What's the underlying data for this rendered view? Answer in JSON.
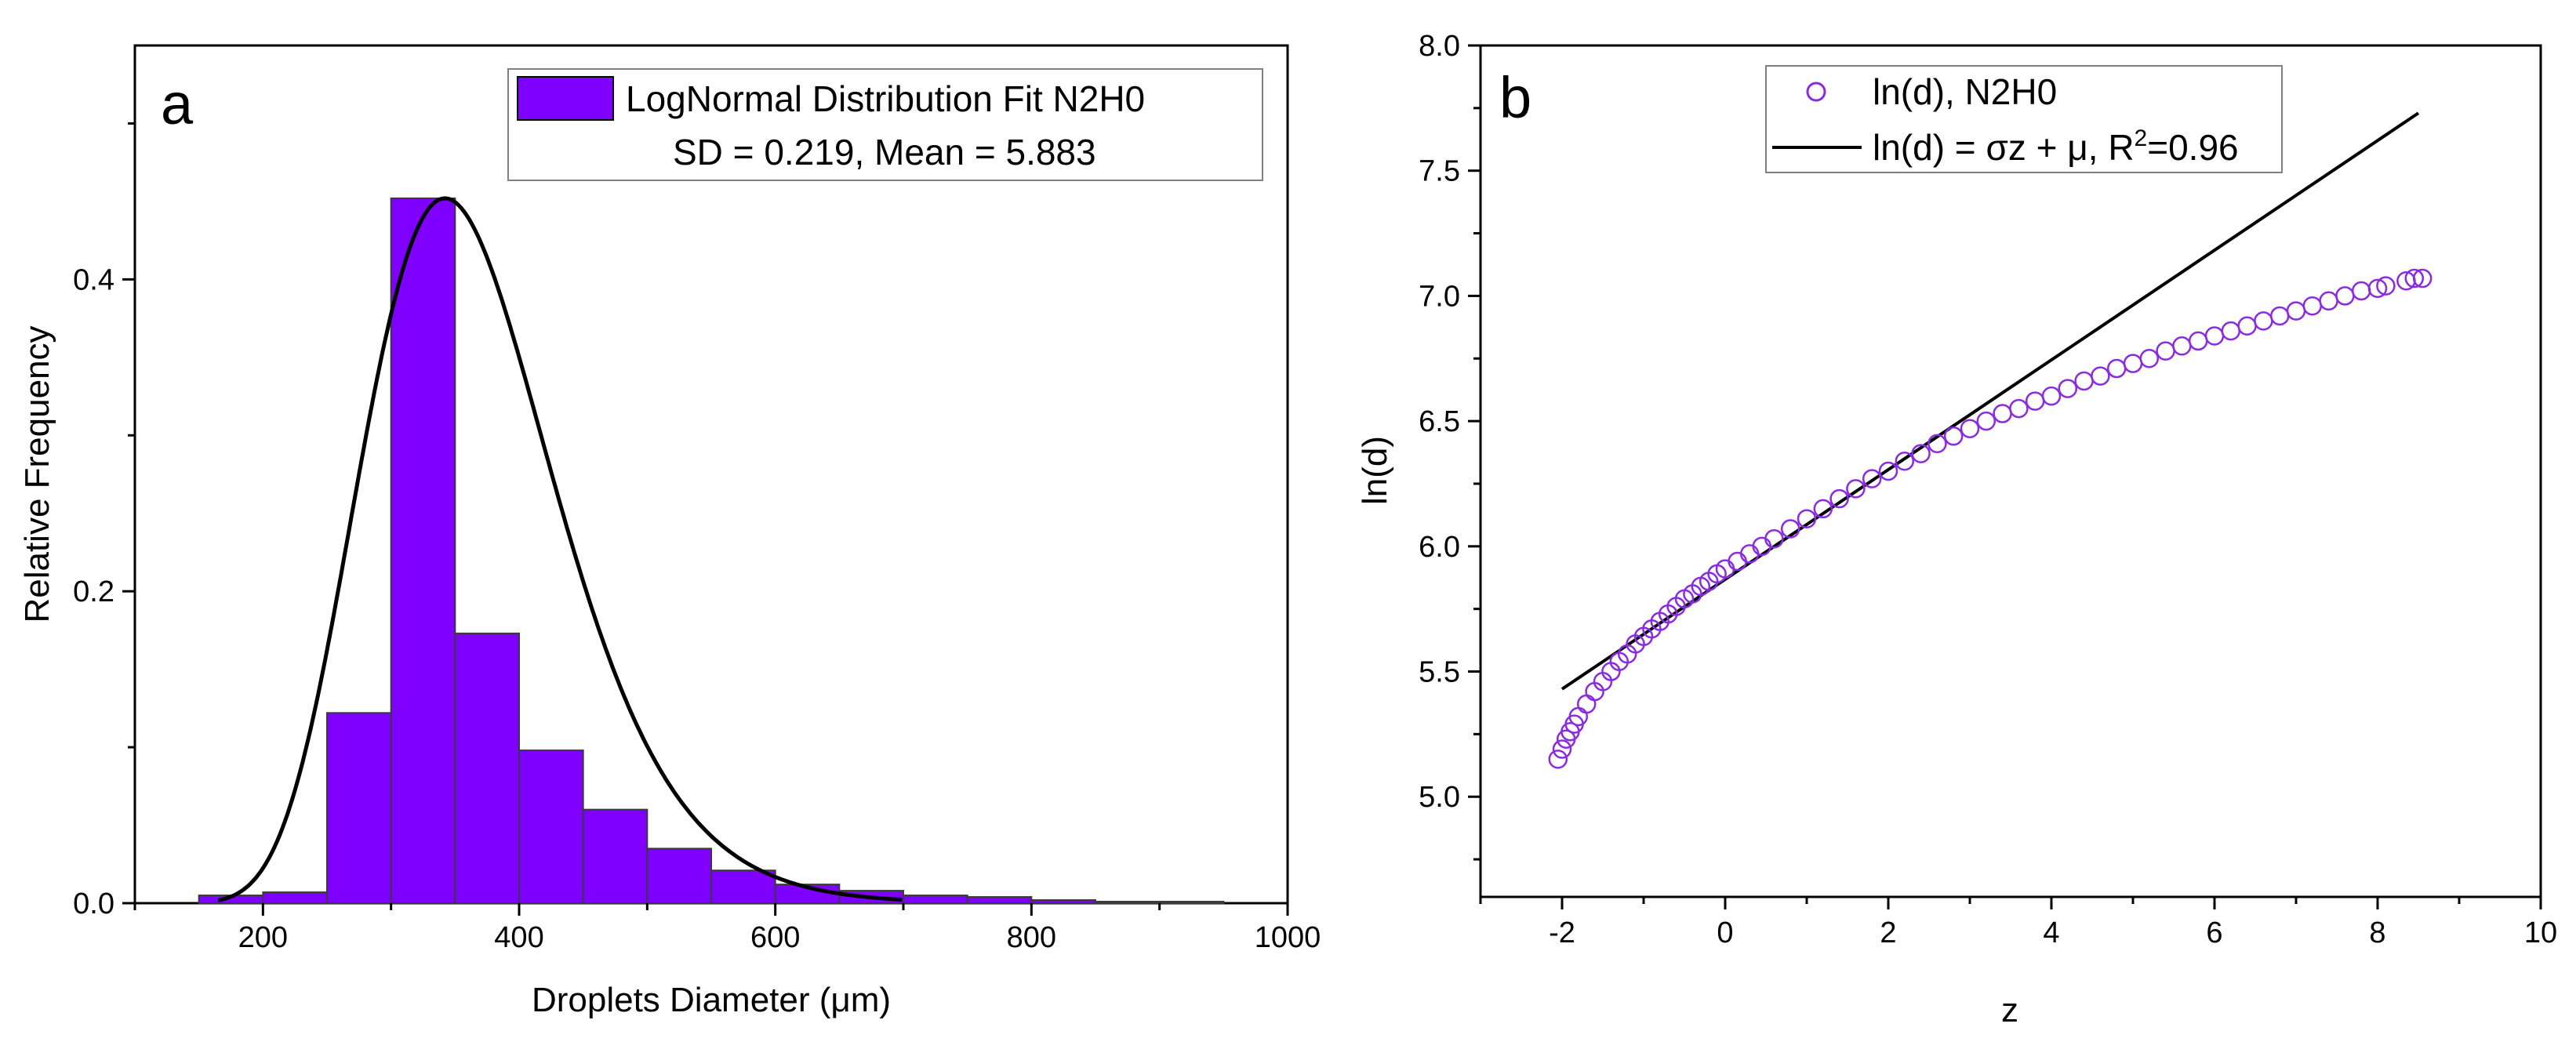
{
  "chart_data": [
    {
      "panel_label": "a",
      "type": "bar",
      "subtype": "histogram-with-fit",
      "xlabel": "Droplets Diameter (μm)",
      "ylabel": "Relative Frequency",
      "xlim": [
        100,
        1000
      ],
      "ylim": [
        0,
        0.55
      ],
      "xticks": [
        200,
        400,
        600,
        800,
        1000
      ],
      "yticks": [
        0.0,
        0.2,
        0.4
      ],
      "bins": [
        {
          "start": 150,
          "end": 200,
          "value": 0.005
        },
        {
          "start": 200,
          "end": 250,
          "value": 0.007
        },
        {
          "start": 250,
          "end": 300,
          "value": 0.122
        },
        {
          "start": 300,
          "end": 350,
          "value": 0.452
        },
        {
          "start": 350,
          "end": 400,
          "value": 0.173
        },
        {
          "start": 400,
          "end": 450,
          "value": 0.098
        },
        {
          "start": 450,
          "end": 500,
          "value": 0.06
        },
        {
          "start": 500,
          "end": 550,
          "value": 0.035
        },
        {
          "start": 550,
          "end": 600,
          "value": 0.021
        },
        {
          "start": 600,
          "end": 650,
          "value": 0.012
        },
        {
          "start": 650,
          "end": 700,
          "value": 0.008
        },
        {
          "start": 700,
          "end": 750,
          "value": 0.005
        },
        {
          "start": 750,
          "end": 800,
          "value": 0.004
        },
        {
          "start": 800,
          "end": 850,
          "value": 0.002
        },
        {
          "start": 850,
          "end": 900,
          "value": 0.001
        },
        {
          "start": 900,
          "end": 950,
          "value": 0.001
        }
      ],
      "fit": {
        "type": "lognormal",
        "sigma": 0.219,
        "mu": 5.883,
        "peak_x": 345,
        "peak_y": 0.452,
        "x_start": 165,
        "x_end": 700
      },
      "legend": {
        "label": "LogNormal Distribution Fit N2H0",
        "stats": "SD = 0.219, Mean = 5.883",
        "position": "top-right"
      },
      "colors": {
        "bar": "#8000ff",
        "bar_edge": "#3a3a3a",
        "fit": "#000000"
      }
    },
    {
      "panel_label": "b",
      "type": "scatter",
      "xlabel": "z",
      "ylabel": "ln(d)",
      "xlim": [
        -3,
        10
      ],
      "ylim": [
        4.6,
        8.0
      ],
      "xticks": [
        -2,
        0,
        2,
        4,
        6,
        8,
        10
      ],
      "yticks": [
        5.0,
        5.5,
        6.0,
        6.5,
        7.0,
        7.5,
        8.0
      ],
      "series": [
        {
          "name": "ln(d), N2H0",
          "kind": "scatter",
          "marker": "open-circle",
          "color": "#8a2be2",
          "points": [
            {
              "x": -2.05,
              "y": 5.15
            },
            {
              "x": -2.0,
              "y": 5.19
            },
            {
              "x": -1.95,
              "y": 5.23
            },
            {
              "x": -1.9,
              "y": 5.26
            },
            {
              "x": -1.85,
              "y": 5.29
            },
            {
              "x": -1.8,
              "y": 5.32
            },
            {
              "x": -1.7,
              "y": 5.37
            },
            {
              "x": -1.6,
              "y": 5.42
            },
            {
              "x": -1.5,
              "y": 5.46
            },
            {
              "x": -1.4,
              "y": 5.5
            },
            {
              "x": -1.3,
              "y": 5.54
            },
            {
              "x": -1.2,
              "y": 5.57
            },
            {
              "x": -1.1,
              "y": 5.61
            },
            {
              "x": -1.0,
              "y": 5.64
            },
            {
              "x": -0.9,
              "y": 5.67
            },
            {
              "x": -0.8,
              "y": 5.7
            },
            {
              "x": -0.7,
              "y": 5.73
            },
            {
              "x": -0.6,
              "y": 5.76
            },
            {
              "x": -0.5,
              "y": 5.79
            },
            {
              "x": -0.4,
              "y": 5.81
            },
            {
              "x": -0.3,
              "y": 5.84
            },
            {
              "x": -0.2,
              "y": 5.86
            },
            {
              "x": -0.1,
              "y": 5.89
            },
            {
              "x": 0.0,
              "y": 5.91
            },
            {
              "x": 0.15,
              "y": 5.94
            },
            {
              "x": 0.3,
              "y": 5.97
            },
            {
              "x": 0.45,
              "y": 6.0
            },
            {
              "x": 0.6,
              "y": 6.03
            },
            {
              "x": 0.8,
              "y": 6.07
            },
            {
              "x": 1.0,
              "y": 6.11
            },
            {
              "x": 1.2,
              "y": 6.15
            },
            {
              "x": 1.4,
              "y": 6.19
            },
            {
              "x": 1.6,
              "y": 6.23
            },
            {
              "x": 1.8,
              "y": 6.27
            },
            {
              "x": 2.0,
              "y": 6.3
            },
            {
              "x": 2.2,
              "y": 6.34
            },
            {
              "x": 2.4,
              "y": 6.37
            },
            {
              "x": 2.6,
              "y": 6.41
            },
            {
              "x": 2.8,
              "y": 6.44
            },
            {
              "x": 3.0,
              "y": 6.47
            },
            {
              "x": 3.2,
              "y": 6.5
            },
            {
              "x": 3.4,
              "y": 6.53
            },
            {
              "x": 3.6,
              "y": 6.55
            },
            {
              "x": 3.8,
              "y": 6.58
            },
            {
              "x": 4.0,
              "y": 6.6
            },
            {
              "x": 4.2,
              "y": 6.63
            },
            {
              "x": 4.4,
              "y": 6.66
            },
            {
              "x": 4.6,
              "y": 6.68
            },
            {
              "x": 4.8,
              "y": 6.71
            },
            {
              "x": 5.0,
              "y": 6.73
            },
            {
              "x": 5.2,
              "y": 6.75
            },
            {
              "x": 5.4,
              "y": 6.78
            },
            {
              "x": 5.6,
              "y": 6.8
            },
            {
              "x": 5.8,
              "y": 6.82
            },
            {
              "x": 6.0,
              "y": 6.84
            },
            {
              "x": 6.2,
              "y": 6.86
            },
            {
              "x": 6.4,
              "y": 6.88
            },
            {
              "x": 6.6,
              "y": 6.9
            },
            {
              "x": 6.8,
              "y": 6.92
            },
            {
              "x": 7.0,
              "y": 6.94
            },
            {
              "x": 7.2,
              "y": 6.96
            },
            {
              "x": 7.4,
              "y": 6.98
            },
            {
              "x": 7.6,
              "y": 7.0
            },
            {
              "x": 7.8,
              "y": 7.02
            },
            {
              "x": 8.0,
              "y": 7.03
            },
            {
              "x": 8.1,
              "y": 7.04
            },
            {
              "x": 8.35,
              "y": 7.06
            },
            {
              "x": 8.45,
              "y": 7.07
            },
            {
              "x": 8.55,
              "y": 7.07
            }
          ]
        },
        {
          "name": "ln(d) = σz + μ, R",
          "name_superscript": "2",
          "name_suffix": "=0.96",
          "kind": "line",
          "color": "#000000",
          "x": [
            -2.0,
            8.5
          ],
          "y": [
            5.43,
            7.73
          ]
        }
      ],
      "legend": {
        "position": "top-left"
      }
    }
  ],
  "colors": {
    "panel_label": "#00b050"
  }
}
